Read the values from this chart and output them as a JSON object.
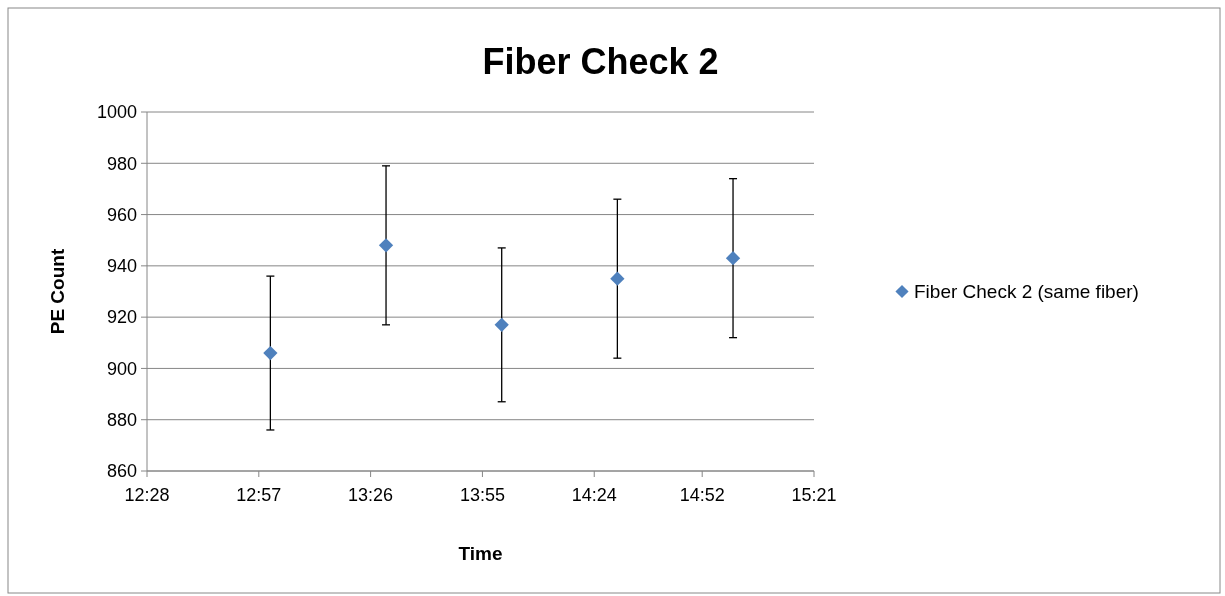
{
  "chart_data": {
    "type": "scatter",
    "title": "Fiber Check 2",
    "xlabel": "Time",
    "ylabel": "PE Count",
    "x": [
      13.0,
      13.5,
      14.0,
      14.5,
      15.0
    ],
    "series": [
      {
        "name": "Fiber Check 2 (same fiber)",
        "color": "#4f81bd",
        "values": [
          906,
          948,
          917,
          935,
          943
        ],
        "errors": [
          30,
          31,
          30,
          31,
          31
        ]
      }
    ],
    "xlim": [
      12.4667,
      15.35
    ],
    "xticks": [
      {
        "value": 12.4667,
        "label": "12:28"
      },
      {
        "value": 12.95,
        "label": "12:57"
      },
      {
        "value": 13.4333,
        "label": "13:26"
      },
      {
        "value": 13.9167,
        "label": "13:55"
      },
      {
        "value": 14.4,
        "label": "14:24"
      },
      {
        "value": 14.8667,
        "label": "14:52"
      },
      {
        "value": 15.35,
        "label": "15:21"
      }
    ],
    "ylim": [
      860,
      1000
    ],
    "yticks": [
      860,
      880,
      900,
      920,
      940,
      960,
      980,
      1000
    ],
    "grid": "y",
    "legend": "right",
    "marker": "diamond"
  }
}
